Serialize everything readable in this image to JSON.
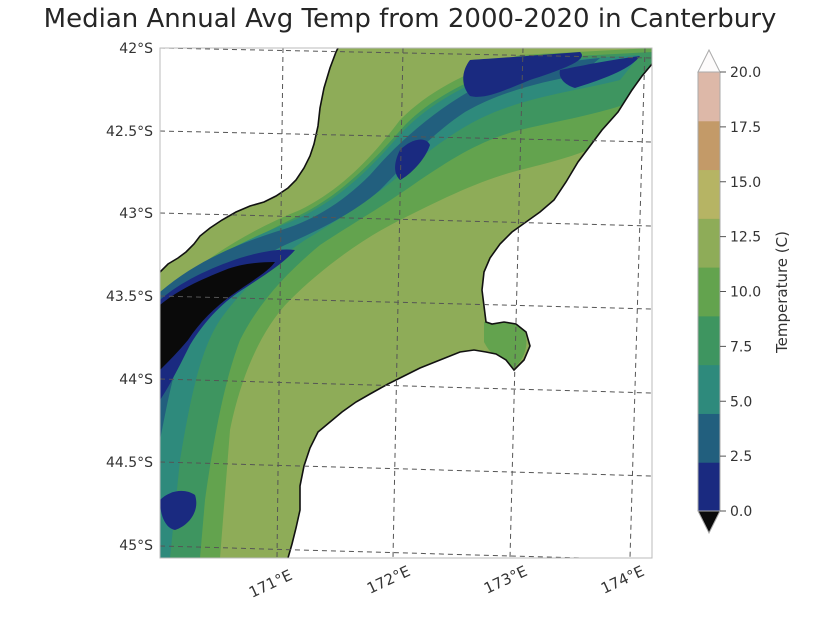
{
  "title": "Median Annual Avg Temp from 2000-2020 in Canterbury",
  "map": {
    "lat_labels": [
      "42°S",
      "42.5°S",
      "43°S",
      "43.5°S",
      "44°S",
      "44.5°S",
      "45°S"
    ],
    "lon_labels": [
      "171°E",
      "172°E",
      "173°E",
      "174°E"
    ]
  },
  "colorbar": {
    "label": "Temperature (C)",
    "ticks": [
      "0.0",
      "2.5",
      "5.0",
      "7.5",
      "10.0",
      "12.5",
      "15.0",
      "17.5",
      "20.0"
    ],
    "colors": [
      "#0a0a0a",
      "#1a2a80",
      "#225f7e",
      "#2e8a7c",
      "#3e9560",
      "#63a34e",
      "#8eac58",
      "#b6b464",
      "#c39a68",
      "#ddb8a8",
      "#fdfbfb"
    ]
  }
}
